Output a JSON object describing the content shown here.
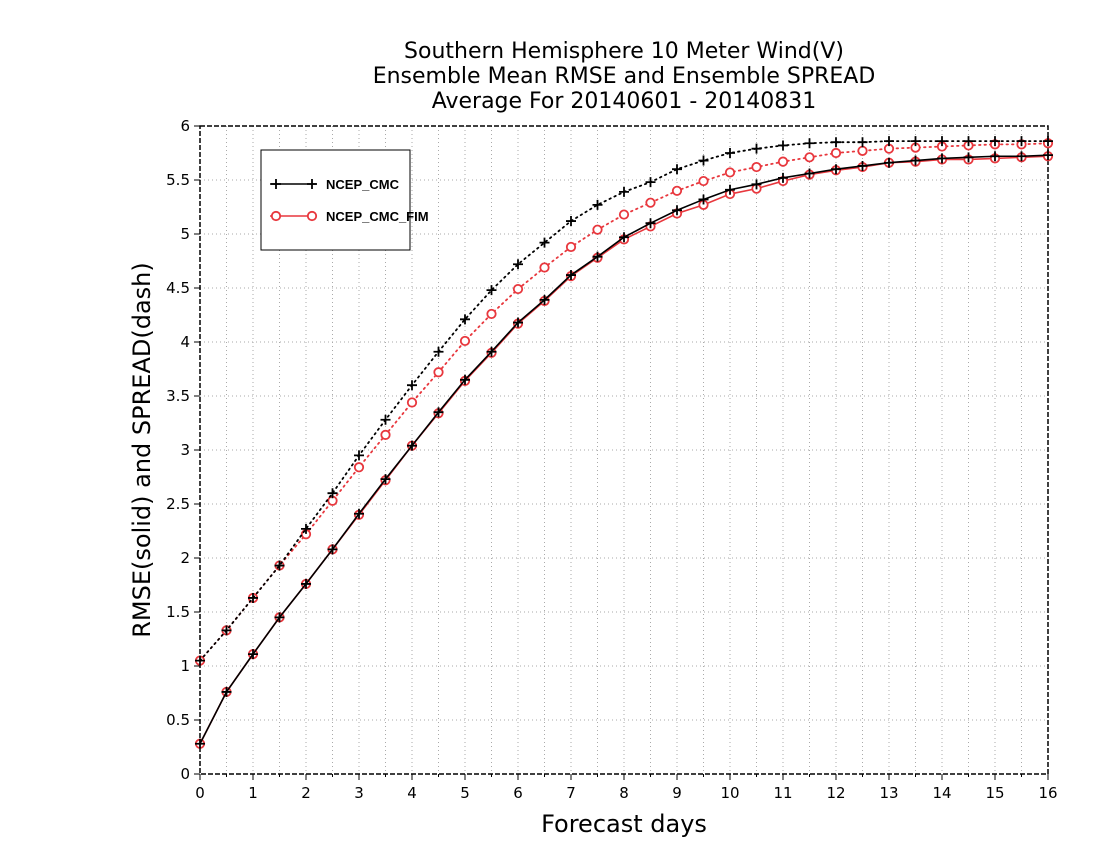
{
  "chart_data": {
    "type": "line",
    "title_lines": [
      "Southern Hemisphere 10 Meter Wind(V)",
      "Ensemble Mean RMSE and Ensemble SPREAD",
      "Average For 20140601 - 20140831"
    ],
    "xlabel": "Forecast days",
    "ylabel": "RMSE(solid) and SPREAD(dash)",
    "xlim": [
      0,
      16
    ],
    "ylim": [
      0,
      6
    ],
    "xticks": [
      "0",
      "1",
      "2",
      "3",
      "4",
      "5",
      "6",
      "7",
      "8",
      "9",
      "10",
      "11",
      "12",
      "13",
      "14",
      "15",
      "16"
    ],
    "yticks": [
      "0",
      "0.5",
      "1",
      "1.5",
      "2",
      "2.5",
      "3",
      "3.5",
      "4",
      "4.5",
      "5",
      "5.5",
      "6"
    ],
    "grid": true,
    "legend_position": "top-left",
    "x": [
      0,
      0.5,
      1,
      1.5,
      2,
      2.5,
      3,
      3.5,
      4,
      4.5,
      5,
      5.5,
      6,
      6.5,
      7,
      7.5,
      8,
      8.5,
      9,
      9.5,
      10,
      10.5,
      11,
      11.5,
      12,
      12.5,
      13,
      13.5,
      14,
      14.5,
      15,
      15.5,
      16
    ],
    "series": [
      {
        "name": "NCEP_CMC",
        "color": "#000000",
        "marker": "plus",
        "rmse": [
          0.28,
          0.76,
          1.11,
          1.45,
          1.76,
          2.08,
          2.41,
          2.73,
          3.04,
          3.35,
          3.65,
          3.91,
          4.18,
          4.39,
          4.62,
          4.79,
          4.97,
          5.1,
          5.22,
          5.32,
          5.41,
          5.46,
          5.52,
          5.56,
          5.6,
          5.63,
          5.66,
          5.68,
          5.7,
          5.71,
          5.72,
          5.72,
          5.73
        ],
        "spread": [
          1.05,
          1.33,
          1.63,
          1.93,
          2.27,
          2.6,
          2.95,
          3.28,
          3.6,
          3.91,
          4.21,
          4.48,
          4.72,
          4.92,
          5.12,
          5.27,
          5.39,
          5.48,
          5.6,
          5.68,
          5.75,
          5.79,
          5.82,
          5.84,
          5.85,
          5.85,
          5.86,
          5.86,
          5.86,
          5.86,
          5.86,
          5.86,
          5.86
        ]
      },
      {
        "name": "NCEP_CMC_FIM",
        "color": "#e8373d",
        "marker": "circle",
        "rmse": [
          0.28,
          0.76,
          1.11,
          1.45,
          1.76,
          2.08,
          2.4,
          2.72,
          3.04,
          3.34,
          3.64,
          3.9,
          4.17,
          4.38,
          4.61,
          4.78,
          4.95,
          5.07,
          5.19,
          5.27,
          5.37,
          5.42,
          5.49,
          5.55,
          5.59,
          5.62,
          5.66,
          5.67,
          5.69,
          5.69,
          5.7,
          5.71,
          5.72
        ],
        "spread": [
          1.05,
          1.33,
          1.63,
          1.93,
          2.22,
          2.53,
          2.84,
          3.14,
          3.44,
          3.72,
          4.01,
          4.26,
          4.49,
          4.69,
          4.88,
          5.04,
          5.18,
          5.29,
          5.4,
          5.49,
          5.57,
          5.62,
          5.67,
          5.71,
          5.75,
          5.77,
          5.79,
          5.8,
          5.81,
          5.82,
          5.83,
          5.83,
          5.84
        ]
      }
    ]
  }
}
